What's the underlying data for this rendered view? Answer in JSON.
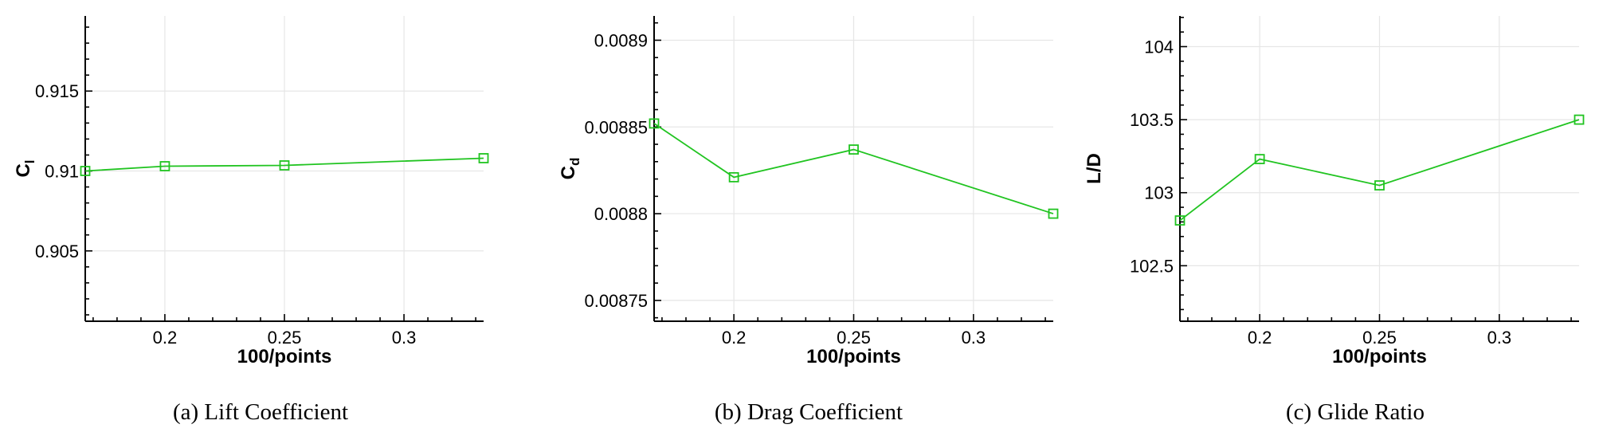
{
  "colors": {
    "series": "#21c421",
    "axis": "#000000",
    "grid": "#e6e6e6"
  },
  "chart_data": [
    {
      "type": "line",
      "caption": "(a)  Lift Coefficient",
      "xlabel": "100/points",
      "ylabel": "C",
      "ylabel_sub": "l",
      "xlim": [
        0.1667,
        0.3333
      ],
      "ylim": [
        0.9006,
        0.9197
      ],
      "xticks": [
        0.2,
        0.25,
        0.3
      ],
      "xtick_labels": [
        "0.2",
        "0.25",
        "0.3"
      ],
      "yticks": [
        0.905,
        0.91,
        0.915
      ],
      "ytick_labels": [
        "0.905",
        "0.91",
        "0.915"
      ],
      "grid": true,
      "series": [
        {
          "x": [
            0.1667,
            0.2,
            0.25,
            0.3333
          ],
          "y": [
            0.91,
            0.9103,
            0.91035,
            0.9108
          ]
        }
      ]
    },
    {
      "type": "line",
      "caption": "(b)  Drag Coefficient",
      "xlabel": "100/points",
      "ylabel": "C",
      "ylabel_sub": "d",
      "xlim": [
        0.1667,
        0.3333
      ],
      "ylim": [
        0.008738,
        0.008914
      ],
      "xticks": [
        0.2,
        0.25,
        0.3
      ],
      "xtick_labels": [
        "0.2",
        "0.25",
        "0.3"
      ],
      "yticks": [
        0.00875,
        0.0088,
        0.00885,
        0.0089
      ],
      "ytick_labels": [
        "0.00875",
        "0.0088",
        "0.00885",
        "0.0089"
      ],
      "grid": true,
      "series": [
        {
          "x": [
            0.1667,
            0.2,
            0.25,
            0.3333
          ],
          "y": [
            0.008852,
            0.008821,
            0.008837,
            0.0088
          ]
        }
      ]
    },
    {
      "type": "line",
      "caption": "(c)  Glide Ratio",
      "xlabel": "100/points",
      "ylabel": "L/D",
      "ylabel_sub": "",
      "xlim": [
        0.1667,
        0.3333
      ],
      "ylim": [
        102.12,
        104.21
      ],
      "xticks": [
        0.2,
        0.25,
        0.3
      ],
      "xtick_labels": [
        "0.2",
        "0.25",
        "0.3"
      ],
      "yticks": [
        102.5,
        103,
        103.5,
        104
      ],
      "ytick_labels": [
        "102.5",
        "103",
        "103.5",
        "104"
      ],
      "grid": true,
      "series": [
        {
          "x": [
            0.1667,
            0.2,
            0.25,
            0.3333
          ],
          "y": [
            102.81,
            103.23,
            103.05,
            103.5
          ]
        }
      ]
    }
  ]
}
